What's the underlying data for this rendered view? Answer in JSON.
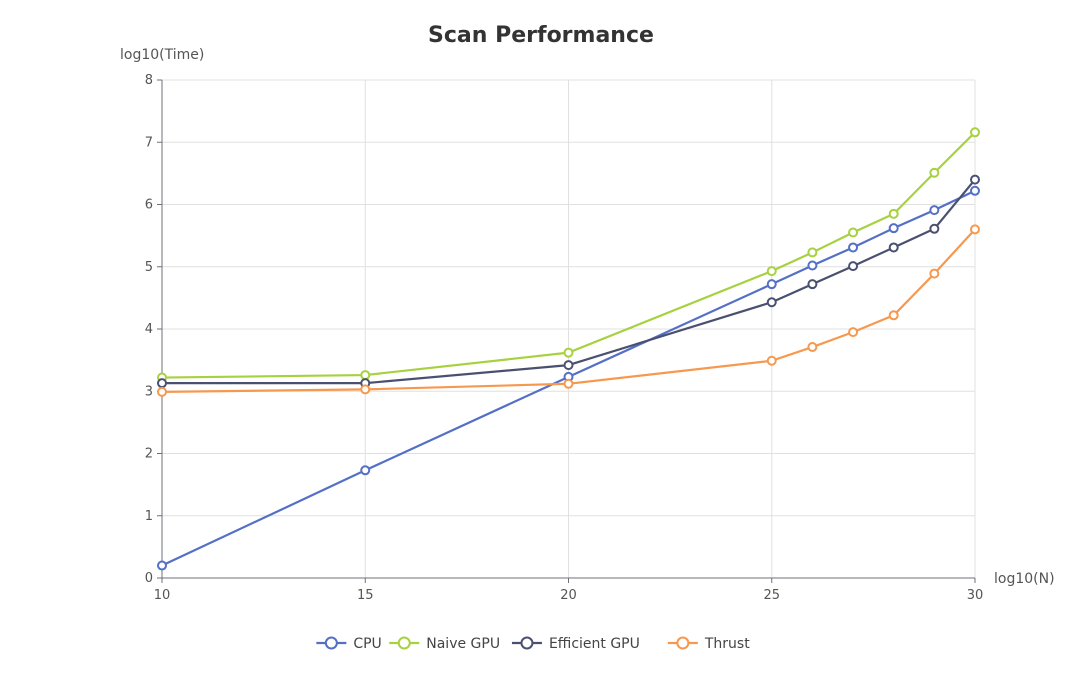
{
  "chart_data": {
    "type": "line",
    "title": "Scan Performance",
    "xlabel": "log10(N)",
    "ylabel": "log10(Time)",
    "xlim": [
      10,
      30
    ],
    "ylim": [
      0,
      8
    ],
    "x_ticks": [
      10,
      15,
      20,
      25,
      30
    ],
    "y_ticks": [
      0,
      1,
      2,
      3,
      4,
      5,
      6,
      7,
      8
    ],
    "grid": true,
    "legend_position": "bottom",
    "series": [
      {
        "name": "CPU",
        "color": "#5470c6",
        "x": [
          10,
          15,
          20,
          25,
          26,
          27,
          28,
          29,
          30
        ],
        "y": [
          0.2,
          1.73,
          3.23,
          4.72,
          5.02,
          5.31,
          5.62,
          5.91,
          6.22
        ]
      },
      {
        "name": "Naive GPU",
        "color": "#a7d13f",
        "x": [
          10,
          15,
          20,
          25,
          26,
          27,
          28,
          29,
          30
        ],
        "y": [
          3.22,
          3.26,
          3.62,
          4.93,
          5.23,
          5.55,
          5.85,
          6.51,
          7.16
        ]
      },
      {
        "name": "Efficient GPU",
        "color": "#4a5070",
        "x": [
          10,
          15,
          20,
          25,
          26,
          27,
          28,
          29,
          30
        ],
        "y": [
          3.13,
          3.13,
          3.42,
          4.43,
          4.72,
          5.01,
          5.31,
          5.61,
          6.4
        ]
      },
      {
        "name": "Thrust",
        "color": "#f7984f",
        "x": [
          10,
          15,
          20,
          25,
          26,
          27,
          28,
          29,
          30
        ],
        "y": [
          2.99,
          3.03,
          3.12,
          3.49,
          3.71,
          3.95,
          4.22,
          4.89,
          5.6
        ]
      }
    ]
  }
}
